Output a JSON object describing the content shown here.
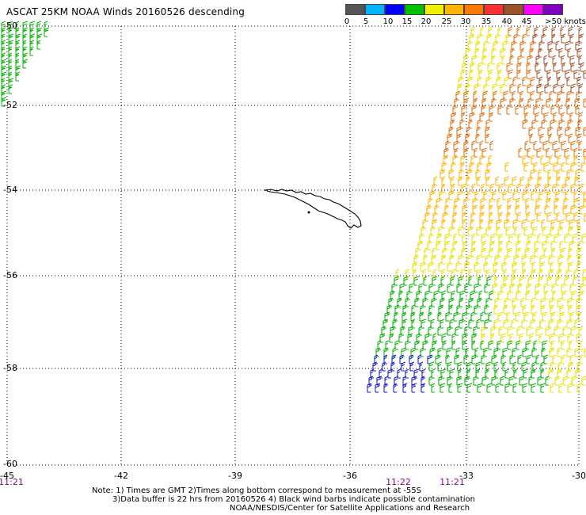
{
  "title": "ASCAT 25KM NOAA Winds 20160526 descending",
  "legend": {
    "colors": [
      "#555555",
      "#00b4ff",
      "#0000ff",
      "#00c000",
      "#f0f000",
      "#ffb400",
      "#ff7800",
      "#ff3030",
      "#a05028",
      "#ff00ff",
      "#8000c0"
    ],
    "labels": [
      "0",
      "5",
      "10",
      "15",
      "20",
      "25",
      "30",
      "35",
      "40",
      "45",
      ">50 knots"
    ]
  },
  "map": {
    "lat_labels": [
      "-50",
      "-52",
      "-54",
      "-56",
      "-58",
      "-60"
    ],
    "lon_labels": [
      "-45",
      "-42",
      "-39",
      "-36",
      "-33",
      "-30"
    ],
    "time_labels": [
      "11:21",
      "11:22",
      "11:21"
    ],
    "island": "South Georgia",
    "barb_colors": {
      "green": "#00b000",
      "blue": "#1010d0",
      "yellow": "#e8e000",
      "gold": "#ffb400",
      "orange": "#e07010",
      "brown": "#a05028"
    }
  },
  "notes": {
    "line1": "Note: 1) Times are GMT 2)Times along bottom correspond to measurement at -55S",
    "line2": "3)Data buffer is 22 hrs from 20160526 4) Black wind barbs indicate possible contamination",
    "line3": "NOAA/NESDIS/Center for Satellite Applications and Research"
  }
}
